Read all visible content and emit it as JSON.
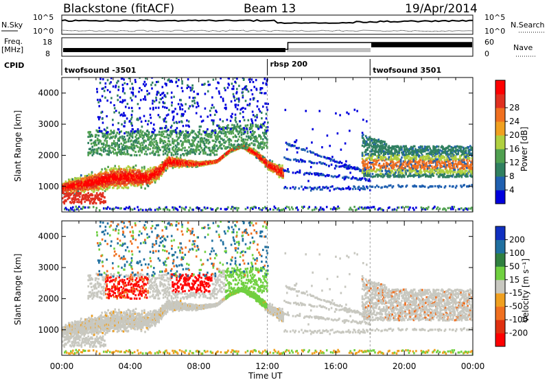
{
  "header": {
    "station": "Blackstone (fitACF)",
    "beam": "Beam 13",
    "date": "19/Apr/2014"
  },
  "panels": {
    "nsky_label": "N.Sky",
    "nsearch_label": "N.Search",
    "freq_label_1": "Freq.",
    "freq_label_2": "[MHz]",
    "nave_label": "Nave",
    "cpid_label": "CPID",
    "noise_ticks_left": [
      "10^5",
      "10^0"
    ],
    "noise_ticks_right": [
      "10^5",
      "10^0"
    ],
    "freq_ticks": [
      "18",
      "8"
    ],
    "nave_ticks": [
      "60",
      "0"
    ]
  },
  "cpid_segments": [
    {
      "label": "twofsound -3501",
      "start_hour": 0
    },
    {
      "label": "rbsp 200",
      "start_hour": 12
    },
    {
      "label": "twofsound 3501",
      "start_hour": 18
    }
  ],
  "chart_data": [
    {
      "type": "heatmap",
      "panel": "power",
      "ylabel": "Slant Range [km]",
      "xlabel": "Time UT",
      "xlim": [
        0,
        24
      ],
      "ylim": [
        180,
        4500
      ],
      "x_ticks": [
        "00:00",
        "04:00",
        "08:00",
        "12:00",
        "16:00",
        "20:00",
        "00:00"
      ],
      "y_ticks": [
        1000,
        2000,
        3000,
        4000
      ],
      "colorbar": {
        "label": "Power [dB]",
        "ticks": [
          "4",
          "8",
          "12",
          "16",
          "20",
          "24",
          "28"
        ],
        "colors": [
          "#0000dd",
          "#2060b0",
          "#308060",
          "#50a050",
          "#b0d040",
          "#f0a020",
          "#f07020",
          "#e03020",
          "#ff0000"
        ]
      },
      "main_band": [
        {
          "x": 0,
          "y": 950
        },
        {
          "x": 1,
          "y": 1050
        },
        {
          "x": 2,
          "y": 1150
        },
        {
          "x": 3,
          "y": 1280
        },
        {
          "x": 4,
          "y": 1300
        },
        {
          "x": 5,
          "y": 1280
        },
        {
          "x": 5.7,
          "y": 1500
        },
        {
          "x": 6.2,
          "y": 1800
        },
        {
          "x": 7,
          "y": 1750
        },
        {
          "x": 8,
          "y": 1720
        },
        {
          "x": 9,
          "y": 1800
        },
        {
          "x": 9.8,
          "y": 2150
        },
        {
          "x": 10.5,
          "y": 2300
        },
        {
          "x": 11.3,
          "y": 2050
        },
        {
          "x": 12,
          "y": 1700
        },
        {
          "x": 12.8,
          "y": 1450
        }
      ]
    },
    {
      "type": "heatmap",
      "panel": "velocity",
      "ylabel": "Slant Range [km]",
      "xlabel": "Time UT",
      "xlim": [
        0,
        24
      ],
      "ylim": [
        180,
        4500
      ],
      "x_ticks": [
        "00:00",
        "04:00",
        "08:00",
        "12:00",
        "16:00",
        "20:00",
        "00:00"
      ],
      "y_ticks": [
        1000,
        2000,
        3000,
        4000
      ],
      "colorbar": {
        "label": "Velocity [m s⁻¹]",
        "ticks": [
          "200",
          "100",
          "50",
          "15",
          "-15",
          "-50",
          "-100",
          "-200"
        ],
        "colors": [
          "#1030c0",
          "#2070a0",
          "#308040",
          "#70d040",
          "#c8c8c0",
          "#f0a020",
          "#f07020",
          "#e03010",
          "#ff0000"
        ]
      }
    }
  ]
}
